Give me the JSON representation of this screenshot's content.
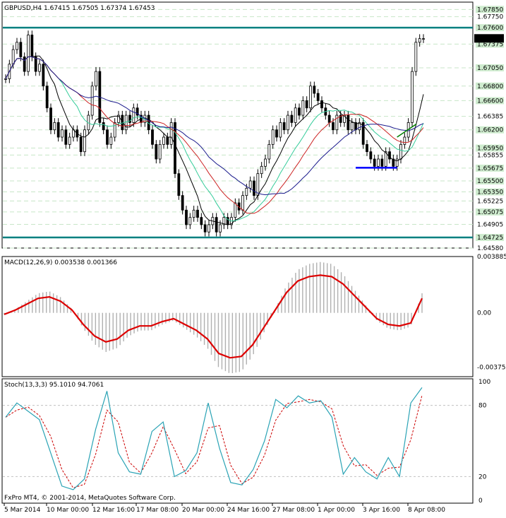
{
  "colors": {
    "background": "#ffffff",
    "grid": "#c8e6c8",
    "level_line": "#008080",
    "candles": "#000000",
    "ma_black": "#000000",
    "ma_red": "#cc2222",
    "ma_blue": "#1a1a8c",
    "ma_cyan": "#33cc99",
    "macd_signal": "#dd0000",
    "macd_hist": "#b0b0b0",
    "stoch_main": "#2aa3b5",
    "stoch_signal": "#cc0000",
    "support_marker": "#0000ff",
    "trend_marker": "#008000"
  },
  "price_panel": {
    "title": "GBPUSD,H4  1.67415 1.67505 1.67374 1.67453",
    "current_price": "1.67453",
    "axis_labels": [
      "1.67850",
      "1.67750",
      "1.67600",
      "1.67375",
      "1.67050",
      "1.66800",
      "1.66600",
      "1.66385",
      "1.66200",
      "1.65950",
      "1.65855",
      "1.65675",
      "1.65500",
      "1.65350",
      "1.65225",
      "1.65075",
      "1.64905",
      "1.64725",
      "1.64580"
    ],
    "highlighted_labels": [
      "1.67850",
      "1.67600",
      "1.67375",
      "1.67050",
      "1.66800",
      "1.66600",
      "1.66200",
      "1.65950",
      "1.65675",
      "1.65500",
      "1.65350",
      "1.65075",
      "1.64725"
    ]
  },
  "macd_panel": {
    "title": "MACD(12,26,9) 0.003538 0.001366",
    "axis_labels": [
      "0.003885",
      "0.00",
      "-0.00375"
    ]
  },
  "stoch_panel": {
    "title": "Stoch(13,3,3) 95.1010 94.7061",
    "axis_labels": [
      "100",
      "80",
      "20",
      "0"
    ]
  },
  "time_axis": [
    "5 Mar 2014",
    "10 Mar 00:00",
    "12 Mar 16:00",
    "17 Mar 08:00",
    "20 Mar 00:00",
    "24 Mar 16:00",
    "27 Mar 08:00",
    "1 Apr 00:00",
    "3 Apr 16:00",
    "8 Apr 08:00"
  ],
  "footer": "FxPro MT4, © 2001-2014, MetaQuotes Software Corp.",
  "chart_data": {
    "type": "line",
    "title": "GBPUSD,H4  1.67415 1.67505 1.67374 1.67453",
    "x_labels": [
      "5 Mar 2014",
      "10 Mar 00:00",
      "12 Mar 16:00",
      "17 Mar 08:00",
      "20 Mar 00:00",
      "24 Mar 16:00",
      "27 Mar 08:00",
      "1 Apr 00:00",
      "3 Apr 16:00",
      "8 Apr 08:00"
    ],
    "ylim": [
      1.6458,
      1.6795
    ],
    "horizontal_levels": [
      1.676,
      1.64725
    ],
    "close": [
      1.669,
      1.671,
      1.673,
      1.674,
      1.672,
      1.67,
      1.675,
      1.672,
      1.67,
      1.671,
      1.668,
      1.665,
      1.662,
      1.663,
      1.661,
      1.662,
      1.66,
      1.661,
      1.662,
      1.661,
      1.659,
      1.662,
      1.664,
      1.668,
      1.67,
      1.663,
      1.662,
      1.66,
      1.661,
      1.663,
      1.664,
      1.662,
      1.664,
      1.663,
      1.665,
      1.664,
      1.663,
      1.664,
      1.662,
      1.66,
      1.658,
      1.66,
      1.661,
      1.66,
      1.663,
      1.656,
      1.653,
      1.651,
      1.649,
      1.65,
      1.651,
      1.65,
      1.649,
      1.648,
      1.649,
      1.65,
      1.648,
      1.649,
      1.65,
      1.649,
      1.65,
      1.652,
      1.651,
      1.653,
      1.654,
      1.655,
      1.653,
      1.656,
      1.657,
      1.658,
      1.66,
      1.662,
      1.661,
      1.663,
      1.662,
      1.664,
      1.663,
      1.665,
      1.664,
      1.666,
      1.665,
      1.668,
      1.667,
      1.666,
      1.665,
      1.664,
      1.663,
      1.662,
      1.664,
      1.663,
      1.664,
      1.662,
      1.663,
      1.662,
      1.663,
      1.66,
      1.659,
      1.658,
      1.657,
      1.658,
      1.657,
      1.659,
      1.658,
      1.657,
      1.658,
      1.66,
      1.661,
      1.663,
      1.67,
      1.674,
      1.6745,
      1.6745
    ],
    "macd_signal": [
      -0.0001,
      0.0002,
      0.0006,
      0.001,
      0.0011,
      0.0008,
      0.0002,
      -0.0008,
      -0.0016,
      -0.002,
      -0.0018,
      -0.0012,
      -0.0009,
      -0.0009,
      -0.0006,
      -0.0004,
      -0.0008,
      -0.0012,
      -0.0018,
      -0.0028,
      -0.0031,
      -0.003,
      -0.0022,
      -0.001,
      0.0002,
      0.0014,
      0.0022,
      0.0025,
      0.0026,
      0.0025,
      0.002,
      0.0012,
      0.0004,
      -0.0004,
      -0.0008,
      -0.0009,
      -0.0007,
      0.001
    ],
    "stoch_main": [
      70,
      82,
      75,
      68,
      40,
      12,
      9,
      18,
      60,
      92,
      40,
      24,
      22,
      58,
      66,
      20,
      25,
      40,
      82,
      44,
      15,
      13,
      26,
      50,
      85,
      78,
      88,
      82,
      84,
      70,
      22,
      36,
      24,
      18,
      36,
      20,
      82,
      95
    ]
  }
}
